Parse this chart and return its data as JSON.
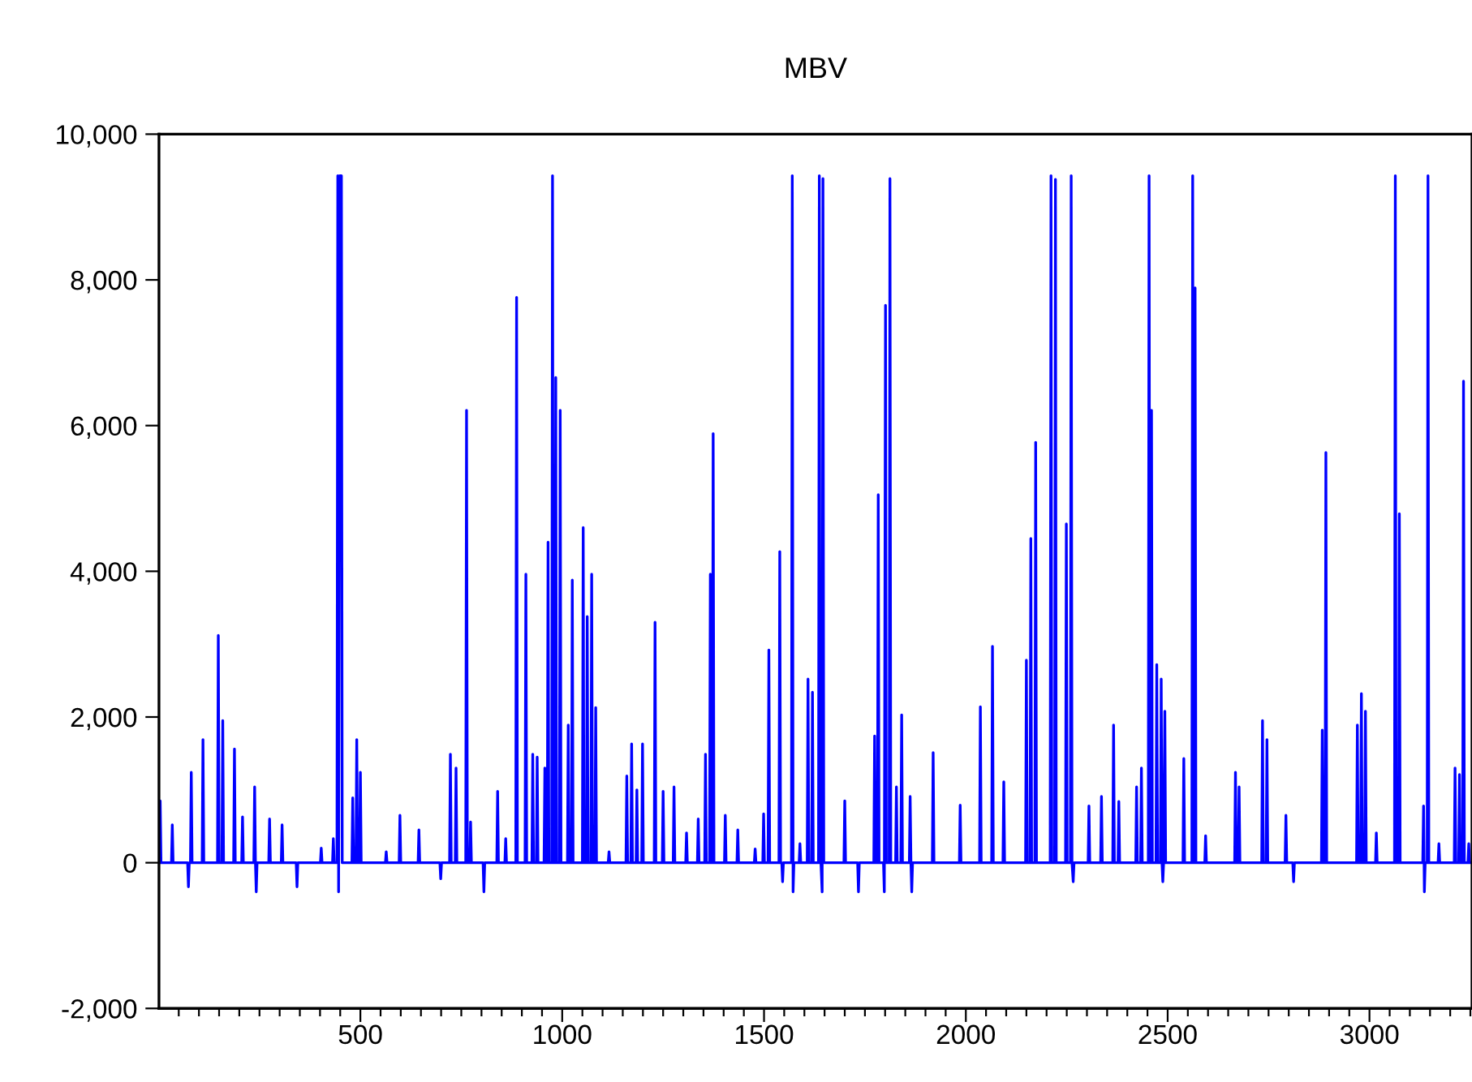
{
  "chart_data": {
    "type": "line",
    "title": "MBV",
    "xlim": [
      1,
      3254
    ],
    "ylim": [
      -2000,
      10000
    ],
    "xticks": [
      {
        "value": 50,
        "label": null
      },
      {
        "value": 100,
        "label": null
      },
      {
        "value": 150,
        "label": null
      },
      {
        "value": 200,
        "label": null
      },
      {
        "value": 250,
        "label": null
      },
      {
        "value": 300,
        "label": null
      },
      {
        "value": 350,
        "label": null
      },
      {
        "value": 400,
        "label": null
      },
      {
        "value": 450,
        "label": null
      },
      500,
      {
        "value": 550,
        "label": null
      },
      {
        "value": 600,
        "label": null
      },
      {
        "value": 650,
        "label": null
      },
      {
        "value": 700,
        "label": null
      },
      {
        "value": 750,
        "label": null
      },
      {
        "value": 800,
        "label": null
      },
      {
        "value": 850,
        "label": null
      },
      {
        "value": 900,
        "label": null
      },
      {
        "value": 950,
        "label": null
      },
      1000,
      {
        "value": 1050,
        "label": null
      },
      {
        "value": 1100,
        "label": null
      },
      {
        "value": 1150,
        "label": null
      },
      {
        "value": 1200,
        "label": null
      },
      {
        "value": 1250,
        "label": null
      },
      {
        "value": 1300,
        "label": null
      },
      {
        "value": 1350,
        "label": null
      },
      {
        "value": 1400,
        "label": null
      },
      {
        "value": 1450,
        "label": null
      },
      1500,
      {
        "value": 1550,
        "label": null
      },
      {
        "value": 1600,
        "label": null
      },
      {
        "value": 1650,
        "label": null
      },
      {
        "value": 1700,
        "label": null
      },
      {
        "value": 1750,
        "label": null
      },
      {
        "value": 1800,
        "label": null
      },
      {
        "value": 1850,
        "label": null
      },
      {
        "value": 1900,
        "label": null
      },
      {
        "value": 1950,
        "label": null
      },
      2000,
      {
        "value": 2050,
        "label": null
      },
      {
        "value": 2100,
        "label": null
      },
      {
        "value": 2150,
        "label": null
      },
      {
        "value": 2200,
        "label": null
      },
      {
        "value": 2250,
        "label": null
      },
      {
        "value": 2300,
        "label": null
      },
      {
        "value": 2350,
        "label": null
      },
      {
        "value": 2400,
        "label": null
      },
      {
        "value": 2450,
        "label": null
      },
      2500,
      {
        "value": 2550,
        "label": null
      },
      {
        "value": 2600,
        "label": null
      },
      {
        "value": 2650,
        "label": null
      },
      {
        "value": 2700,
        "label": null
      },
      {
        "value": 2750,
        "label": null
      },
      {
        "value": 2800,
        "label": null
      },
      {
        "value": 2850,
        "label": null
      },
      {
        "value": 2900,
        "label": null
      },
      {
        "value": 2950,
        "label": null
      },
      3000,
      {
        "value": 3050,
        "label": null
      },
      {
        "value": 3100,
        "label": null
      },
      {
        "value": 3150,
        "label": null
      },
      {
        "value": 3200,
        "label": null
      },
      {
        "value": 3250,
        "label": null
      }
    ],
    "yticks": [
      {
        "value": -2000,
        "label": "-2,000"
      },
      {
        "value": 0,
        "label": "0"
      },
      {
        "value": 2000,
        "label": "2,000"
      },
      {
        "value": 4000,
        "label": "4,000"
      },
      {
        "value": 6000,
        "label": "6,000"
      },
      {
        "value": 8000,
        "label": "8,000"
      },
      {
        "value": 10000,
        "label": "10,000"
      }
    ],
    "grid": false,
    "legend": false,
    "marker": "none",
    "line_style": "solid",
    "series": [
      {
        "color": "#0000ff",
        "x": [
          1,
          4,
          6,
          32,
          34,
          36,
          72,
          74,
          76,
          79,
          81,
          83,
          108,
          110,
          112,
          146,
          148,
          150,
          157,
          159,
          161,
          186,
          188,
          190,
          206,
          208,
          210,
          236,
          238,
          240,
          242,
          244,
          273,
          275,
          277,
          304,
          306,
          308,
          341,
          343,
          345,
          401,
          403,
          405,
          431,
          433,
          435,
          442,
          444,
          446,
          449,
          453,
          455,
          479,
          481,
          483,
          489,
          491,
          493,
          498,
          500,
          502,
          562,
          564,
          566,
          596,
          598,
          600,
          643,
          645,
          647,
          697,
          699,
          701,
          721,
          723,
          725,
          735,
          737,
          739,
          761,
          763,
          765,
          771,
          773,
          775,
          804,
          806,
          808,
          838,
          840,
          842,
          858,
          860,
          862,
          885,
          887,
          889,
          908,
          910,
          912,
          925,
          927,
          929,
          936,
          938,
          940,
          955,
          957,
          959,
          963,
          965,
          967,
          974,
          976,
          978,
          982,
          984,
          986,
          993,
          995,
          997,
          1013,
          1015,
          1017,
          1023,
          1025,
          1027,
          1050,
          1052,
          1054,
          1060,
          1062,
          1064,
          1071,
          1073,
          1075,
          1081,
          1083,
          1085,
          1114,
          1116,
          1118,
          1158,
          1160,
          1162,
          1170,
          1172,
          1174,
          1183,
          1185,
          1187,
          1197,
          1199,
          1201,
          1228,
          1230,
          1232,
          1248,
          1250,
          1252,
          1275,
          1277,
          1279,
          1306,
          1308,
          1310,
          1335,
          1337,
          1339,
          1353,
          1355,
          1357,
          1365,
          1367,
          1369,
          1372,
          1374,
          1376,
          1402,
          1404,
          1406,
          1433,
          1435,
          1437,
          1476,
          1478,
          1480,
          1497,
          1499,
          1501,
          1510,
          1512,
          1514,
          1537,
          1539,
          1541,
          1544,
          1546,
          1548,
          1568,
          1570,
          1572,
          1574,
          1587,
          1589,
          1591,
          1607,
          1609,
          1611,
          1618,
          1620,
          1622,
          1635,
          1637,
          1639,
          1641,
          1644,
          1646,
          1648,
          1698,
          1700,
          1702,
          1732,
          1734,
          1736,
          1772,
          1774,
          1776,
          1781,
          1783,
          1785,
          1796,
          1798,
          1801,
          1803,
          1810,
          1812,
          1814,
          1826,
          1828,
          1830,
          1839,
          1841,
          1843,
          1860,
          1862,
          1864,
          1866,
          1868,
          1917,
          1919,
          1921,
          1984,
          1986,
          1988,
          2034,
          2036,
          2038,
          2064,
          2066,
          2068,
          2092,
          2094,
          2096,
          2148,
          2150,
          2152,
          2159,
          2161,
          2163,
          2171,
          2173,
          2175,
          2209,
          2211,
          2213,
          2220,
          2222,
          2224,
          2247,
          2249,
          2251,
          2259,
          2261,
          2263,
          2266,
          2268,
          2303,
          2305,
          2307,
          2334,
          2336,
          2338,
          2364,
          2366,
          2368,
          2377,
          2379,
          2381,
          2421,
          2423,
          2425,
          2433,
          2435,
          2437,
          2452,
          2454,
          2456,
          2458,
          2460,
          2462,
          2471,
          2473,
          2475,
          2482,
          2484,
          2486,
          2488,
          2490,
          2493,
          2495,
          2538,
          2540,
          2542,
          2560,
          2562,
          2564,
          2566,
          2568,
          2570,
          2592,
          2594,
          2596,
          2666,
          2668,
          2670,
          2675,
          2677,
          2679,
          2733,
          2735,
          2737,
          2744,
          2746,
          2748,
          2791,
          2793,
          2795,
          2810,
          2812,
          2814,
          2881,
          2883,
          2885,
          2890,
          2892,
          2894,
          2968,
          2970,
          2972,
          2978,
          2980,
          2982,
          2988,
          2990,
          2992,
          3015,
          3017,
          3019,
          3062,
          3064,
          3066,
          3072,
          3074,
          3076,
          3132,
          3134,
          3136,
          3138,
          3143,
          3145,
          3147,
          3170,
          3172,
          3174,
          3210,
          3212,
          3214,
          3221,
          3223,
          3225,
          3231,
          3233,
          3235,
          3244,
          3246,
          3248,
          3254
        ],
        "values": [
          0,
          850,
          0,
          0,
          520,
          0,
          0,
          -330,
          0,
          0,
          1240,
          0,
          0,
          1690,
          0,
          0,
          3120,
          0,
          0,
          1950,
          0,
          0,
          1560,
          0,
          0,
          630,
          0,
          0,
          1040,
          0,
          -400,
          0,
          0,
          600,
          0,
          0,
          520,
          0,
          0,
          -330,
          0,
          0,
          200,
          0,
          0,
          330,
          0,
          0,
          9430,
          -400,
          9430,
          9430,
          0,
          0,
          890,
          0,
          0,
          1690,
          0,
          0,
          1240,
          0,
          0,
          150,
          0,
          0,
          650,
          0,
          0,
          450,
          0,
          0,
          -220,
          0,
          0,
          1490,
          0,
          0,
          1300,
          0,
          0,
          6210,
          0,
          0,
          560,
          0,
          0,
          -400,
          0,
          0,
          980,
          0,
          0,
          330,
          0,
          0,
          7760,
          0,
          0,
          3960,
          0,
          0,
          1490,
          0,
          0,
          1450,
          0,
          0,
          1300,
          0,
          0,
          4400,
          0,
          0,
          9430,
          0,
          0,
          6660,
          0,
          0,
          6210,
          0,
          0,
          1890,
          0,
          0,
          3880,
          0,
          0,
          4600,
          0,
          0,
          3380,
          0,
          0,
          3960,
          0,
          0,
          2130,
          0,
          0,
          150,
          0,
          0,
          1190,
          0,
          0,
          1630,
          0,
          0,
          1000,
          0,
          0,
          1630,
          0,
          0,
          3300,
          0,
          0,
          980,
          0,
          0,
          1040,
          0,
          0,
          410,
          0,
          0,
          600,
          0,
          0,
          1490,
          0,
          0,
          3960,
          0,
          0,
          5890,
          0,
          0,
          650,
          0,
          0,
          450,
          0,
          0,
          190,
          0,
          0,
          670,
          0,
          0,
          2920,
          0,
          0,
          4270,
          0,
          0,
          -260,
          0,
          0,
          9430,
          -400,
          0,
          0,
          260,
          0,
          0,
          2520,
          0,
          0,
          2340,
          0,
          0,
          9430,
          0,
          0,
          -400,
          9390,
          0,
          0,
          850,
          0,
          0,
          -400,
          0,
          0,
          1740,
          0,
          0,
          5050,
          0,
          0,
          -400,
          7650,
          0,
          0,
          9390,
          0,
          0,
          1040,
          0,
          0,
          2030,
          0,
          0,
          910,
          0,
          -400,
          0,
          0,
          1510,
          0,
          0,
          790,
          0,
          0,
          2140,
          0,
          0,
          2970,
          0,
          0,
          1110,
          0,
          0,
          2780,
          0,
          0,
          4450,
          0,
          0,
          5770,
          0,
          0,
          9430,
          0,
          0,
          9380,
          0,
          0,
          4650,
          0,
          0,
          9430,
          0,
          -260,
          0,
          0,
          780,
          0,
          0,
          910,
          0,
          0,
          1890,
          0,
          0,
          840,
          0,
          0,
          1040,
          0,
          0,
          1300,
          0,
          0,
          9430,
          0,
          0,
          6210,
          0,
          0,
          2720,
          0,
          0,
          2520,
          0,
          -260,
          0,
          2080,
          0,
          0,
          1430,
          0,
          0,
          9430,
          0,
          0,
          7890,
          0,
          0,
          370,
          0,
          0,
          1240,
          0,
          0,
          1040,
          0,
          0,
          1950,
          0,
          0,
          1690,
          0,
          0,
          650,
          0,
          0,
          -260,
          0,
          0,
          1820,
          0,
          0,
          5630,
          0,
          0,
          1890,
          0,
          0,
          2320,
          0,
          0,
          2080,
          0,
          0,
          410,
          0,
          0,
          9430,
          0,
          0,
          4790,
          0,
          0,
          780,
          -400,
          0,
          0,
          9430,
          0,
          0,
          260,
          0,
          0,
          1300,
          0,
          0,
          1210,
          0,
          0,
          6610,
          0,
          0,
          260,
          0,
          0
        ]
      }
    ]
  }
}
